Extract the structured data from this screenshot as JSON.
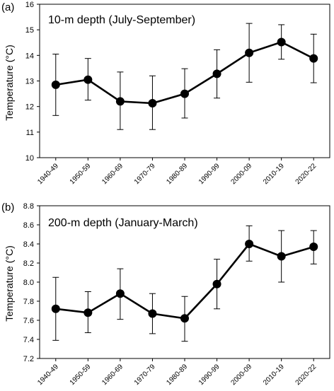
{
  "chart_data": [
    {
      "type": "line",
      "panel_label": "(a)",
      "title": "10-m depth (July-September)",
      "xlabel": "",
      "ylabel": "Temperature (°C)",
      "categories": [
        "1940-49",
        "1950-59",
        "1960-69",
        "1970-79",
        "1980-89",
        "1990-99",
        "2000-09",
        "2010-19",
        "2020-22"
      ],
      "values": [
        12.85,
        13.05,
        12.2,
        12.13,
        12.5,
        13.28,
        14.1,
        14.52,
        13.88
      ],
      "error_low": [
        11.65,
        12.25,
        11.1,
        11.1,
        11.55,
        12.33,
        12.95,
        13.85,
        12.93
      ],
      "error_high": [
        14.05,
        13.88,
        13.35,
        13.2,
        13.48,
        14.22,
        15.25,
        15.2,
        14.83
      ],
      "ylim": [
        10,
        16
      ],
      "yticks": [
        "10",
        "11",
        "12",
        "13",
        "14",
        "15",
        "16"
      ],
      "grid": false,
      "legend": "none"
    },
    {
      "type": "line",
      "panel_label": "(b)",
      "title": "200-m depth (January-March)",
      "xlabel": "",
      "ylabel": "Temperature (°C)",
      "categories": [
        "1940-49",
        "1950-59",
        "1960-69",
        "1970-79",
        "1980-89",
        "1990-99",
        "2000-09",
        "2010-19",
        "2020-22"
      ],
      "values": [
        7.72,
        7.68,
        7.88,
        7.67,
        7.62,
        7.98,
        8.4,
        8.27,
        8.37
      ],
      "error_low": [
        7.39,
        7.47,
        7.61,
        7.46,
        7.38,
        7.72,
        8.22,
        8.0,
        8.19
      ],
      "error_high": [
        8.05,
        7.9,
        8.14,
        7.88,
        7.85,
        8.24,
        8.59,
        8.54,
        8.54
      ],
      "ylim": [
        7.2,
        8.8
      ],
      "yticks": [
        "7.2",
        "7.4",
        "7.6",
        "7.8",
        "8.0",
        "8.2",
        "8.4",
        "8.6",
        "8.8"
      ],
      "grid": false,
      "legend": "none"
    }
  ]
}
